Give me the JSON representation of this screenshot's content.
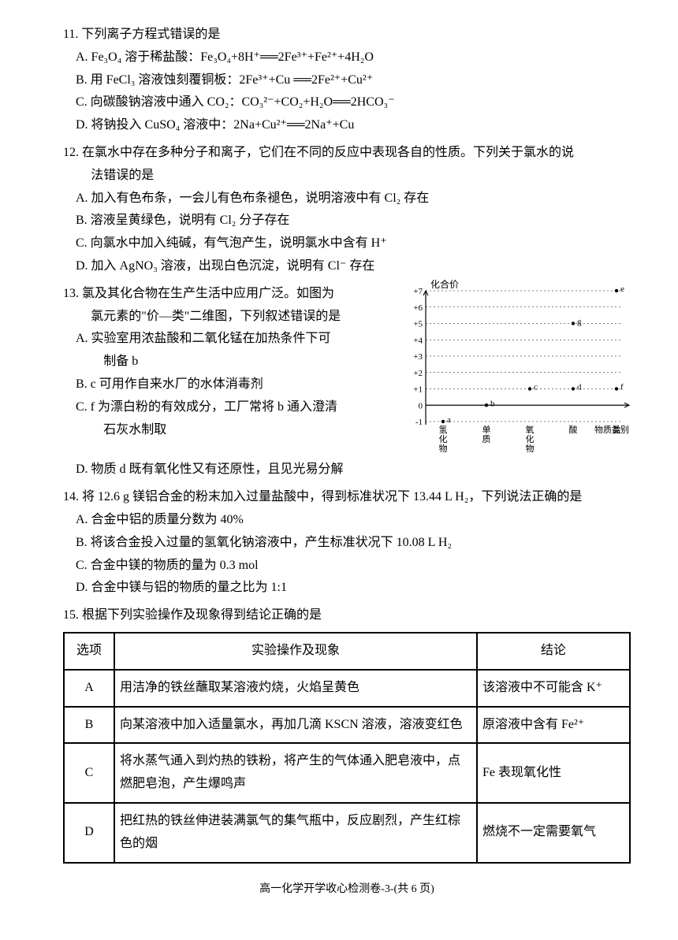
{
  "q11": {
    "stem": "11. 下列离子方程式错误的是",
    "A": "A. Fe₃O₄ 溶于稀盐酸：Fe₃O₄+8H⁺══2Fe³⁺+Fe²⁺+4H₂O",
    "B": "B. 用 FeCl₃ 溶液蚀刻覆铜板：2Fe³⁺+Cu ══2Fe²⁺+Cu²⁺",
    "C": "C. 向碳酸钠溶液中通入 CO₂：CO₃²⁻+CO₂+H₂O══2HCO₃⁻",
    "D": "D. 将钠投入 CuSO₄ 溶液中：2Na+Cu²⁺══2Na⁺+Cu"
  },
  "q12": {
    "stem1": "12. 在氯水中存在多种分子和离子，它们在不同的反应中表现各自的性质。下列关于氯水的说",
    "stem2": "法错误的是",
    "A": "A. 加入有色布条，一会儿有色布条褪色，说明溶液中有 Cl₂ 存在",
    "B": "B. 溶液呈黄绿色，说明有 Cl₂ 分子存在",
    "C": "C. 向氯水中加入纯碱，有气泡产生，说明氯水中含有 H⁺",
    "D": "D. 加入 AgNO₃ 溶液，出现白色沉淀，说明有 Cl⁻ 存在"
  },
  "q13": {
    "stem1": "13. 氯及其化合物在生产生活中应用广泛。如图为",
    "stem2": "氯元素的\"价—类\"二维图，下列叙述错误的是",
    "A1": "A. 实验室用浓盐酸和二氧化锰在加热条件下可",
    "A2": "制备 b",
    "B": "B. c 可用作自来水厂的水体消毒剂",
    "C1": "C. f 为漂白粉的有效成分，工厂常将 b 通入澄清",
    "C2": "石灰水制取",
    "D": "D. 物质 d 既有氧化性又有还原性，且见光易分解",
    "chart": {
      "ylabel": "化合价",
      "xlabel": "物质类别",
      "yticks": [
        "+7",
        "+6",
        "+5",
        "+4",
        "+3",
        "+2",
        "+1",
        "0",
        "-1"
      ],
      "xticks": [
        "氢化物",
        "单质",
        "氧化物",
        "酸",
        "盐"
      ],
      "points": [
        {
          "label": "a",
          "xi": 0,
          "y": -1
        },
        {
          "label": "b",
          "xi": 1,
          "y": 0
        },
        {
          "label": "c",
          "xi": 2,
          "y": 1
        },
        {
          "label": "d",
          "xi": 3,
          "y": 1
        },
        {
          "label": "g",
          "xi": 3,
          "y": 5
        },
        {
          "label": "e",
          "xi": 4,
          "y": 7
        },
        {
          "label": "f",
          "xi": 4,
          "y": 1
        }
      ],
      "grid_color": "#000",
      "text_color": "#000"
    }
  },
  "q14": {
    "stem": "14. 将 12.6 g 镁铝合金的粉末加入过量盐酸中，得到标准状况下 13.44 L H₂，下列说法正确的是",
    "A": "A. 合金中铝的质量分数为 40%",
    "B": "B. 将该合金投入过量的氢氧化钠溶液中，产生标准状况下 10.08 L H₂",
    "C": "C. 合金中镁的物质的量为 0.3 mol",
    "D": "D. 合金中镁与铝的物质的量之比为 1:1"
  },
  "q15": {
    "stem": "15. 根据下列实验操作及现象得到结论正确的是",
    "table": {
      "headers": [
        "选项",
        "实验操作及现象",
        "结论"
      ],
      "rows": [
        [
          "A",
          "用洁净的铁丝蘸取某溶液灼烧，火焰呈黄色",
          "该溶液中不可能含 K⁺"
        ],
        [
          "B",
          "向某溶液中加入适量氯水，再加几滴 KSCN 溶液，溶液变红色",
          "原溶液中含有 Fe²⁺"
        ],
        [
          "C",
          "将水蒸气通入到灼热的铁粉，将产生的气体通入肥皂液中，点燃肥皂泡，产生爆鸣声",
          "Fe 表现氧化性"
        ],
        [
          "D",
          "把红热的铁丝伸进装满氯气的集气瓶中，反应剧烈，产生红棕色的烟",
          "燃烧不一定需要氧气"
        ]
      ]
    }
  },
  "footer": "高一化学开学收心检测卷-3-(共 6 页)"
}
